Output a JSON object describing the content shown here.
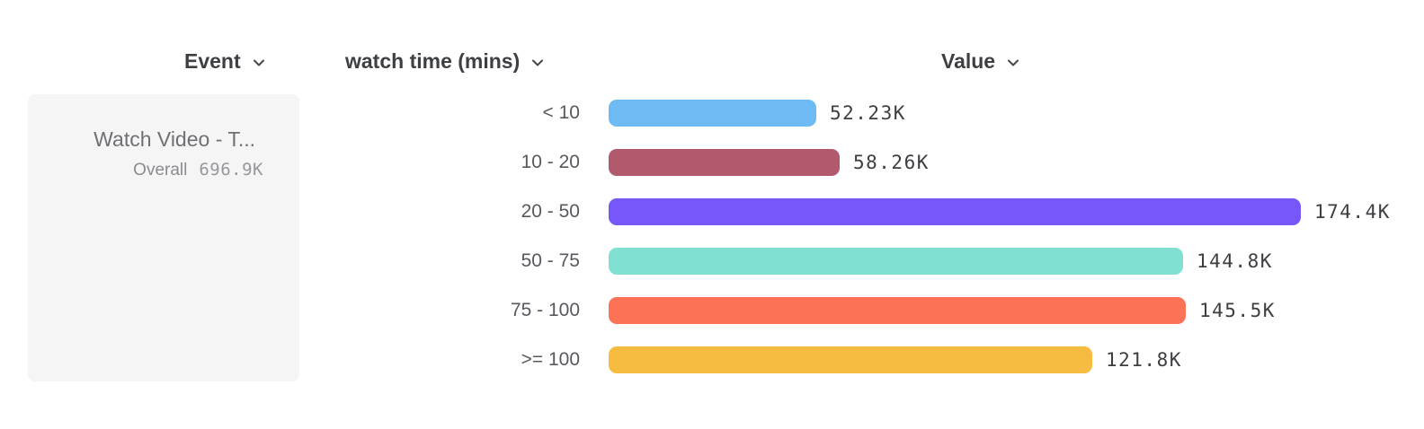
{
  "columns": [
    {
      "id": "event",
      "label": "Event"
    },
    {
      "id": "breakdown",
      "label": "watch time (mins)"
    },
    {
      "id": "value",
      "label": "Value"
    }
  ],
  "event_card": {
    "name": "Watch Video - T...",
    "overall_label": "Overall",
    "overall_value": "696.9K"
  },
  "icons": {
    "column_dropdown": "chevron-down-icon"
  },
  "chart_data": {
    "type": "bar",
    "orientation": "horizontal",
    "title": "",
    "xlabel": "Value",
    "ylabel": "watch time (mins)",
    "series_name": "Watch Video - T...",
    "categories": [
      "< 10",
      "10 - 20",
      "20 - 50",
      "50 - 75",
      "75 - 100",
      ">= 100"
    ],
    "values": [
      52230,
      58260,
      174400,
      144800,
      145500,
      121800
    ],
    "value_labels": [
      "52.23K",
      "58.26K",
      "174.4K",
      "144.8K",
      "145.5K",
      "121.8K"
    ],
    "bar_colors": [
      "#6ebbf3",
      "#b25a6d",
      "#7857fa",
      "#80e0d2",
      "#fc7257",
      "#f6bc41"
    ],
    "xlim": [
      0,
      180000
    ],
    "grid": false,
    "legend": false
  }
}
